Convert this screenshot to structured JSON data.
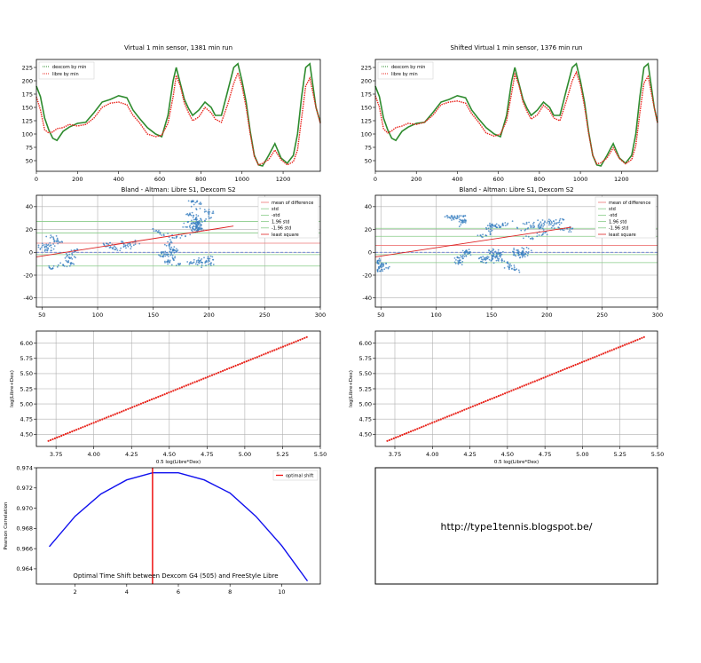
{
  "colors": {
    "dexcom": "#2e8b2e",
    "libre": "#e8241c",
    "scatter": "#3a7fc0",
    "mean_line": "#ee7777",
    "std_line": "#88cc88",
    "lsq_line": "#dd2222",
    "zero_line": "#4b66cc",
    "corr_curve": "#1010ee",
    "optimal": "#ee1111",
    "grid": "#b0b0b0"
  },
  "chart_data": [
    {
      "id": "ts_left",
      "type": "line",
      "title": "Virtual 1 min sensor, 1381 min run",
      "xlim": [
        0,
        1381
      ],
      "ylim": [
        30,
        240
      ],
      "xticks": [
        "0",
        "200",
        "400",
        "600",
        "800",
        "1000",
        "1200"
      ],
      "yticks": [
        "50",
        "75",
        "100",
        "125",
        "150",
        "175",
        "200",
        "225"
      ],
      "legend": [
        "dexcom by min",
        "libre by min"
      ],
      "legend_loc": "upper-left",
      "series": [
        {
          "name": "dexcom by min",
          "x": [
            0,
            20,
            40,
            60,
            80,
            100,
            130,
            160,
            200,
            240,
            280,
            320,
            360,
            400,
            440,
            470,
            500,
            540,
            580,
            610,
            640,
            665,
            680,
            700,
            720,
            740,
            760,
            790,
            820,
            850,
            870,
            900,
            930,
            960,
            980,
            1000,
            1020,
            1040,
            1060,
            1080,
            1100,
            1130,
            1160,
            1190,
            1220,
            1250,
            1270,
            1290,
            1310,
            1330,
            1360,
            1381
          ],
          "y": [
            190,
            170,
            130,
            108,
            92,
            88,
            105,
            113,
            120,
            122,
            140,
            160,
            165,
            172,
            168,
            145,
            130,
            112,
            100,
            95,
            135,
            200,
            225,
            195,
            165,
            148,
            135,
            145,
            160,
            150,
            135,
            135,
            180,
            225,
            232,
            200,
            160,
            105,
            60,
            42,
            40,
            60,
            82,
            55,
            45,
            60,
            100,
            170,
            225,
            232,
            150,
            122
          ]
        },
        {
          "name": "libre by min",
          "x": [
            0,
            20,
            40,
            60,
            80,
            100,
            130,
            160,
            200,
            240,
            280,
            320,
            360,
            400,
            440,
            470,
            500,
            540,
            580,
            610,
            640,
            665,
            680,
            700,
            720,
            740,
            760,
            790,
            820,
            850,
            870,
            900,
            930,
            960,
            980,
            1000,
            1020,
            1040,
            1060,
            1080,
            1100,
            1130,
            1160,
            1190,
            1220,
            1250,
            1270,
            1290,
            1310,
            1330,
            1360,
            1381
          ],
          "y": [
            170,
            145,
            108,
            102,
            104,
            110,
            112,
            118,
            115,
            118,
            130,
            150,
            158,
            160,
            155,
            135,
            122,
            100,
            95,
            98,
            120,
            170,
            210,
            190,
            158,
            140,
            125,
            132,
            150,
            140,
            128,
            122,
            155,
            195,
            215,
            190,
            150,
            100,
            58,
            42,
            45,
            52,
            70,
            52,
            42,
            48,
            70,
            130,
            190,
            205,
            150,
            120
          ]
        }
      ]
    },
    {
      "id": "ts_right",
      "type": "line",
      "title": "Shifted Virtual 1 min sensor, 1376 min run",
      "xlim": [
        0,
        1376
      ],
      "ylim": [
        30,
        240
      ],
      "xticks": [
        "0",
        "200",
        "400",
        "600",
        "800",
        "1000",
        "1200"
      ],
      "yticks": [
        "50",
        "75",
        "100",
        "125",
        "150",
        "175",
        "200",
        "225"
      ],
      "legend": [
        "dexcom by min",
        "libre by min"
      ],
      "legend_loc": "upper-left",
      "series": [
        {
          "name": "dexcom by min",
          "x": [
            0,
            20,
            40,
            60,
            80,
            100,
            130,
            160,
            200,
            240,
            280,
            320,
            360,
            400,
            440,
            470,
            500,
            540,
            580,
            610,
            640,
            665,
            680,
            700,
            720,
            740,
            760,
            790,
            820,
            850,
            870,
            900,
            930,
            960,
            980,
            1000,
            1020,
            1040,
            1060,
            1080,
            1100,
            1130,
            1160,
            1190,
            1220,
            1250,
            1270,
            1290,
            1310,
            1330,
            1360,
            1376
          ],
          "y": [
            190,
            170,
            130,
            108,
            92,
            88,
            105,
            113,
            120,
            122,
            140,
            160,
            165,
            172,
            168,
            145,
            130,
            112,
            100,
            95,
            135,
            200,
            225,
            195,
            165,
            148,
            135,
            145,
            160,
            150,
            135,
            135,
            180,
            225,
            232,
            200,
            160,
            105,
            60,
            42,
            40,
            60,
            82,
            55,
            45,
            60,
            100,
            170,
            225,
            232,
            150,
            122
          ]
        },
        {
          "name": "libre by min",
          "x": [
            0,
            20,
            40,
            60,
            80,
            100,
            130,
            160,
            200,
            240,
            280,
            320,
            360,
            400,
            440,
            470,
            500,
            540,
            580,
            610,
            640,
            665,
            680,
            700,
            720,
            740,
            760,
            790,
            820,
            850,
            870,
            900,
            930,
            960,
            980,
            1000,
            1020,
            1040,
            1060,
            1080,
            1100,
            1130,
            1160,
            1190,
            1220,
            1250,
            1270,
            1290,
            1310,
            1330,
            1360,
            1376
          ],
          "y": [
            172,
            150,
            110,
            102,
            106,
            112,
            115,
            120,
            118,
            122,
            135,
            155,
            160,
            162,
            158,
            138,
            124,
            102,
            96,
            100,
            125,
            178,
            212,
            192,
            160,
            142,
            128,
            136,
            154,
            144,
            130,
            125,
            160,
            200,
            216,
            192,
            152,
            102,
            60,
            44,
            46,
            55,
            74,
            54,
            44,
            52,
            78,
            140,
            196,
            208,
            150,
            121
          ]
        }
      ]
    },
    {
      "id": "ba_left",
      "type": "scatter",
      "title": "Bland - Altman: Libre S1, Dexcom S2",
      "xlim": [
        45,
        300
      ],
      "ylim": [
        -48,
        50
      ],
      "xticks": [
        "50",
        "100",
        "150",
        "200",
        "250",
        "300"
      ],
      "yticks": [
        "-40",
        "-20",
        "0",
        "20",
        "40"
      ],
      "legend": [
        "mean of difference",
        "std",
        "-std",
        "1.96 std",
        "-1.96 std",
        "least square"
      ],
      "legend_loc": "upper-right",
      "reference_lines": {
        "mean": 8,
        "std": 17,
        "neg_std": -2,
        "std196": 27,
        "neg_std196": -12,
        "zero": 0
      },
      "least_square": {
        "x": [
          45,
          222
        ],
        "y": [
          -4,
          23
        ]
      }
    },
    {
      "id": "ba_right",
      "type": "scatter",
      "title": "Bland - Altman: Libre S1, Dexcom S2",
      "xlim": [
        45,
        300
      ],
      "ylim": [
        -48,
        50
      ],
      "xticks": [
        "50",
        "100",
        "150",
        "200",
        "250",
        "300"
      ],
      "yticks": [
        "-40",
        "-20",
        "0",
        "20",
        "40"
      ],
      "legend": [
        "mean of difference",
        "std",
        "-std",
        "1.96 std",
        "-1.96 std",
        "least square"
      ],
      "legend_loc": "upper-right",
      "reference_lines": {
        "mean": 6,
        "std": 14,
        "neg_std": -2,
        "std196": 21,
        "neg_std196": -9,
        "zero": 0
      },
      "least_square": {
        "x": [
          45,
          222
        ],
        "y": [
          -4,
          22
        ]
      }
    },
    {
      "id": "log_left",
      "type": "scatter",
      "title": "",
      "xlabel": "0.5 log(Libre*Dex)",
      "ylabel": "log(Libre+Dex)",
      "xlim": [
        3.62,
        5.5
      ],
      "ylim": [
        4.3,
        6.2
      ],
      "xticks": [
        "3.75",
        "4.00",
        "4.25",
        "4.50",
        "4.75",
        "5.00",
        "5.25",
        "5.50"
      ],
      "yticks": [
        "4.50",
        "4.75",
        "5.00",
        "5.25",
        "5.50",
        "5.75",
        "6.00"
      ],
      "line": {
        "x": [
          3.7,
          5.41
        ],
        "y": [
          4.39,
          6.1
        ]
      }
    },
    {
      "id": "log_right",
      "type": "scatter",
      "title": "",
      "xlabel": "0.5 log(Libre*Dex)",
      "ylabel": "log(Libre+Dex)",
      "xlim": [
        3.62,
        5.5
      ],
      "ylim": [
        4.3,
        6.2
      ],
      "xticks": [
        "3.75",
        "4.00",
        "4.25",
        "4.50",
        "4.75",
        "5.00",
        "5.25",
        "5.50"
      ],
      "yticks": [
        "4.50",
        "4.75",
        "5.00",
        "5.25",
        "5.50",
        "5.75",
        "6.00"
      ],
      "line": {
        "x": [
          3.7,
          5.41
        ],
        "y": [
          4.39,
          6.1
        ]
      }
    },
    {
      "id": "corr",
      "type": "line",
      "title": "Optimal Time Shift between Dexcom G4 (505) and FreeStyle Libre",
      "xlabel": "",
      "ylabel": "Pearson Correlation",
      "xlim": [
        0.5,
        11.5
      ],
      "ylim": [
        0.9625,
        0.974
      ],
      "xticks": [
        "2",
        "4",
        "6",
        "8",
        "10"
      ],
      "yticks": [
        "0.964",
        "0.966",
        "0.968",
        "0.970",
        "0.972",
        "0.974"
      ],
      "legend": [
        "optimal shift"
      ],
      "legend_loc": "upper-right",
      "series": [
        {
          "name": "correlation",
          "x": [
            1,
            2,
            3,
            4,
            5,
            6,
            7,
            8,
            9,
            10,
            11
          ],
          "y": [
            0.9662,
            0.9692,
            0.9714,
            0.9728,
            0.9735,
            0.9735,
            0.9728,
            0.9715,
            0.9692,
            0.9663,
            0.9628
          ]
        }
      ],
      "optimal_shift": 5
    }
  ],
  "link_text": "http://type1tennis.blogspot.be/"
}
